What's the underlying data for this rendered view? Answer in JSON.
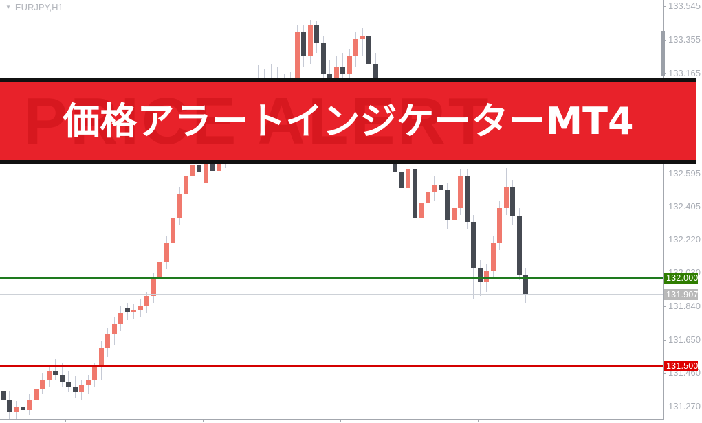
{
  "app": {
    "symbol_label": "EURJPY,H1"
  },
  "banner": {
    "title": "価格アラートインジケーターMT4",
    "watermark": "PRICE ALERT",
    "bg_color": "#e8222a",
    "border_color": "#111111",
    "text_color": "#ffffff",
    "watermark_color": "#d7181f"
  },
  "levels": {
    "upper": {
      "label": "132.000",
      "price": 132.0,
      "line_color": "#1e7a1e",
      "badge_color": "#2f7d00"
    },
    "current": {
      "label": "131.907",
      "price": 131.907,
      "line_color": "#cdd1d7",
      "badge_color": "#b9b9b9"
    },
    "lower": {
      "label": "131.500",
      "price": 131.5,
      "line_color": "#d40000",
      "badge_color": "#dd0000"
    }
  },
  "colors": {
    "bull": "#f0796d",
    "bear": "#464a52",
    "wick": "#c6cad5",
    "axis": "#a3a7ae",
    "tick_label": "#a9adb5"
  },
  "chart_data": {
    "type": "candlestick",
    "symbol": "EURJPY",
    "timeframe": "H1",
    "grid": "off",
    "legend": "none",
    "y_axis": {
      "side": "right",
      "min": 131.19,
      "max": 133.56,
      "tick_labels": [
        "133.545",
        "133.355",
        "133.165",
        "132.595",
        "132.405",
        "132.220",
        "132.030",
        "131.840",
        "131.650",
        "131.460",
        "131.270"
      ]
    },
    "horizontal_lines": [
      {
        "price": 132.0,
        "color": "green",
        "role": "price-alert-upper"
      },
      {
        "price": 131.907,
        "color": "lightgray",
        "role": "current-bid"
      },
      {
        "price": 131.5,
        "color": "red",
        "role": "price-alert-lower"
      }
    ],
    "time_axis_tick_xs": [
      95,
      295,
      495,
      695
    ],
    "candles": [
      [
        4,
        131.36,
        131.42,
        131.28,
        131.31
      ],
      [
        13,
        131.31,
        131.36,
        131.2,
        131.24
      ],
      [
        23,
        131.24,
        131.3,
        131.19,
        131.27
      ],
      [
        33,
        131.27,
        131.33,
        131.22,
        131.25
      ],
      [
        42,
        131.25,
        131.34,
        131.22,
        131.31
      ],
      [
        52,
        131.31,
        131.4,
        131.29,
        131.37
      ],
      [
        61,
        131.37,
        131.46,
        131.34,
        131.42
      ],
      [
        71,
        131.42,
        131.5,
        131.38,
        131.47
      ],
      [
        80,
        131.47,
        131.54,
        131.42,
        131.45
      ],
      [
        90,
        131.45,
        131.52,
        131.38,
        131.41
      ],
      [
        99,
        131.41,
        131.47,
        131.35,
        131.38
      ],
      [
        109,
        131.38,
        131.44,
        131.32,
        131.35
      ],
      [
        118,
        131.35,
        131.42,
        131.31,
        131.39
      ],
      [
        128,
        131.39,
        131.45,
        131.34,
        131.42
      ],
      [
        137,
        131.42,
        131.52,
        131.38,
        131.5
      ],
      [
        147,
        131.5,
        131.64,
        131.42,
        131.6
      ],
      [
        156,
        131.6,
        131.72,
        131.55,
        131.68
      ],
      [
        166,
        131.68,
        131.78,
        131.62,
        131.74
      ],
      [
        175,
        131.74,
        131.84,
        131.7,
        131.8
      ],
      [
        185,
        131.83,
        131.86,
        131.76,
        131.81
      ],
      [
        194,
        131.81,
        131.85,
        131.77,
        131.82
      ],
      [
        204,
        131.82,
        131.88,
        131.78,
        131.84
      ],
      [
        213,
        131.84,
        131.92,
        131.8,
        131.9
      ],
      [
        223,
        131.9,
        132.03,
        131.86,
        132.0
      ],
      [
        232,
        132.0,
        132.12,
        131.96,
        132.09
      ],
      [
        242,
        132.09,
        132.24,
        132.05,
        132.2
      ],
      [
        251,
        132.2,
        132.38,
        132.16,
        132.34
      ],
      [
        261,
        132.34,
        132.52,
        132.3,
        132.48
      ],
      [
        270,
        132.48,
        132.62,
        132.44,
        132.58
      ],
      [
        280,
        132.58,
        132.68,
        132.52,
        132.64
      ],
      [
        289,
        132.64,
        132.7,
        132.56,
        132.6
      ],
      [
        299,
        132.54,
        132.7,
        132.47,
        132.67
      ],
      [
        308,
        132.67,
        132.72,
        132.58,
        132.61
      ],
      [
        318,
        132.61,
        132.7,
        132.56,
        132.67
      ],
      [
        327,
        132.67,
        132.76,
        132.63,
        132.73
      ],
      [
        337,
        132.73,
        132.8,
        132.68,
        132.77
      ],
      [
        346,
        132.77,
        132.86,
        132.72,
        132.82
      ],
      [
        356,
        132.82,
        132.92,
        132.78,
        132.88
      ],
      [
        365,
        132.88,
        133.0,
        132.84,
        132.96
      ],
      [
        375,
        132.96,
        133.21,
        132.92,
        133.1
      ],
      [
        384,
        133.1,
        133.19,
        133.02,
        133.06
      ],
      [
        394,
        133.06,
        133.22,
        133.0,
        133.12
      ],
      [
        403,
        133.12,
        133.2,
        133.05,
        133.08
      ],
      [
        413,
        133.08,
        133.16,
        133.02,
        133.1
      ],
      [
        422,
        133.1,
        133.17,
        133.04,
        133.14
      ],
      [
        432,
        133.14,
        133.44,
        133.08,
        133.4
      ],
      [
        441,
        133.4,
        133.44,
        133.2,
        133.26
      ],
      [
        451,
        133.26,
        133.47,
        133.22,
        133.44
      ],
      [
        460,
        133.44,
        133.46,
        133.28,
        133.34
      ],
      [
        470,
        133.34,
        133.38,
        133.1,
        133.16
      ],
      [
        479,
        133.16,
        133.24,
        133.08,
        133.12
      ],
      [
        489,
        133.12,
        133.26,
        133.06,
        133.2
      ],
      [
        498,
        133.2,
        133.28,
        133.12,
        133.16
      ],
      [
        508,
        133.16,
        133.3,
        133.1,
        133.26
      ],
      [
        517,
        133.26,
        133.4,
        133.2,
        133.36
      ],
      [
        527,
        133.36,
        133.42,
        133.26,
        133.38
      ],
      [
        536,
        133.38,
        133.41,
        133.18,
        133.22
      ],
      [
        546,
        133.22,
        133.28,
        133.02,
        133.06
      ],
      [
        555,
        133.06,
        133.1,
        132.88,
        132.92
      ],
      [
        565,
        132.92,
        132.96,
        132.72,
        132.76
      ],
      [
        574,
        132.76,
        132.8,
        132.56,
        132.6
      ],
      [
        584,
        132.6,
        132.66,
        132.48,
        132.51
      ],
      [
        593,
        132.51,
        132.64,
        132.4,
        132.62
      ],
      [
        603,
        132.62,
        132.66,
        132.3,
        132.34
      ],
      [
        612,
        132.34,
        132.48,
        132.28,
        132.43
      ],
      [
        622,
        132.43,
        132.52,
        132.38,
        132.49
      ],
      [
        631,
        132.49,
        132.58,
        132.44,
        132.53
      ],
      [
        641,
        132.53,
        132.58,
        132.46,
        132.5
      ],
      [
        650,
        132.5,
        132.54,
        132.28,
        132.33
      ],
      [
        660,
        132.33,
        132.44,
        132.26,
        132.4
      ],
      [
        669,
        132.4,
        132.62,
        132.36,
        132.58
      ],
      [
        679,
        132.58,
        132.62,
        132.28,
        132.32
      ],
      [
        688,
        132.32,
        132.36,
        131.88,
        132.06
      ],
      [
        698,
        132.06,
        132.1,
        131.9,
        131.98
      ],
      [
        707,
        131.98,
        132.08,
        131.92,
        132.04
      ],
      [
        717,
        132.04,
        132.24,
        132.0,
        132.2
      ],
      [
        726,
        132.2,
        132.44,
        132.16,
        132.4
      ],
      [
        736,
        132.4,
        132.63,
        132.36,
        132.52
      ],
      [
        745,
        132.52,
        132.56,
        132.3,
        132.35
      ],
      [
        755,
        132.35,
        132.4,
        131.99,
        132.02
      ],
      [
        764,
        132.02,
        132.06,
        131.86,
        131.91
      ]
    ]
  }
}
